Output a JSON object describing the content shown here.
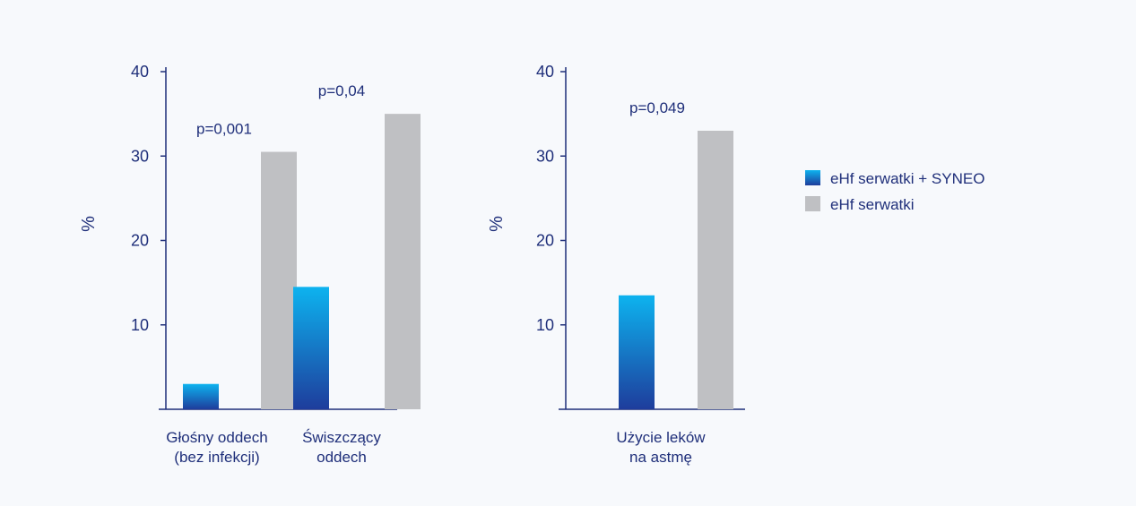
{
  "colors": {
    "axis": "#1f2f7a",
    "text": "#1f2f7a",
    "syneo_top": "#0db3ef",
    "syneo_bottom": "#1e3d9c",
    "control": "#bfc0c3"
  },
  "chart_data": [
    {
      "type": "bar",
      "ylabel": "%",
      "ylim": [
        0,
        40
      ],
      "yticks": [
        "10",
        "20",
        "30",
        "40"
      ],
      "categories": [
        {
          "lines": [
            "Głośny oddech",
            "(bez infekcji)"
          ]
        },
        {
          "lines": [
            "Świszczący",
            "oddech"
          ]
        }
      ],
      "series": [
        {
          "name": "eHf serwatki + SYNEO",
          "values": [
            3,
            14.5
          ]
        },
        {
          "name": "eHf serwatki",
          "values": [
            30.5,
            35
          ]
        }
      ],
      "annotations": [
        "p=0,001",
        "p=0,04"
      ]
    },
    {
      "type": "bar",
      "ylabel": "%",
      "ylim": [
        0,
        40
      ],
      "yticks": [
        "10",
        "20",
        "30",
        "40"
      ],
      "categories": [
        {
          "lines": [
            "Użycie leków",
            "na astmę"
          ]
        }
      ],
      "series": [
        {
          "name": "eHf serwatki + SYNEO",
          "values": [
            13.5
          ]
        },
        {
          "name": "eHf serwatki",
          "values": [
            33
          ]
        }
      ],
      "annotations": [
        "p=0,049"
      ]
    }
  ],
  "legend": {
    "position": "right",
    "items": [
      {
        "label": "eHf serwatki + SYNEO",
        "color": "syneo"
      },
      {
        "label": "eHf serwatki",
        "color": "control"
      }
    ]
  }
}
